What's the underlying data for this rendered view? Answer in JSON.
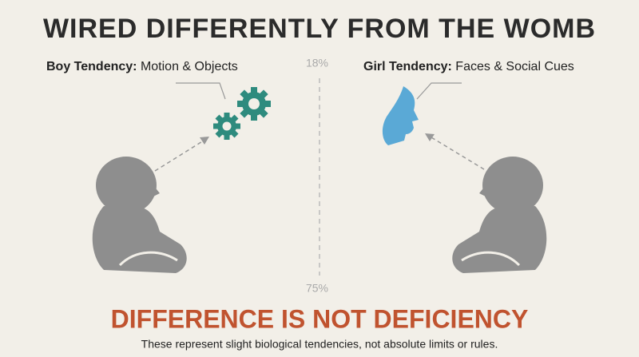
{
  "header": {
    "title": "WIRED DIFFERENTLY FROM THE WOMB"
  },
  "left": {
    "label": "Boy Tendency:",
    "text": "Motion & Objects"
  },
  "right": {
    "label": "Girl Tendency:",
    "text": "Faces & Social Cues"
  },
  "center": {
    "top": "18%",
    "bottom": "75%"
  },
  "footer": {
    "headline": "DIFFERENCE IS NOT DEFICIENCY",
    "note": "These represent slight biological tendencies, not absolute limits or rules."
  }
}
